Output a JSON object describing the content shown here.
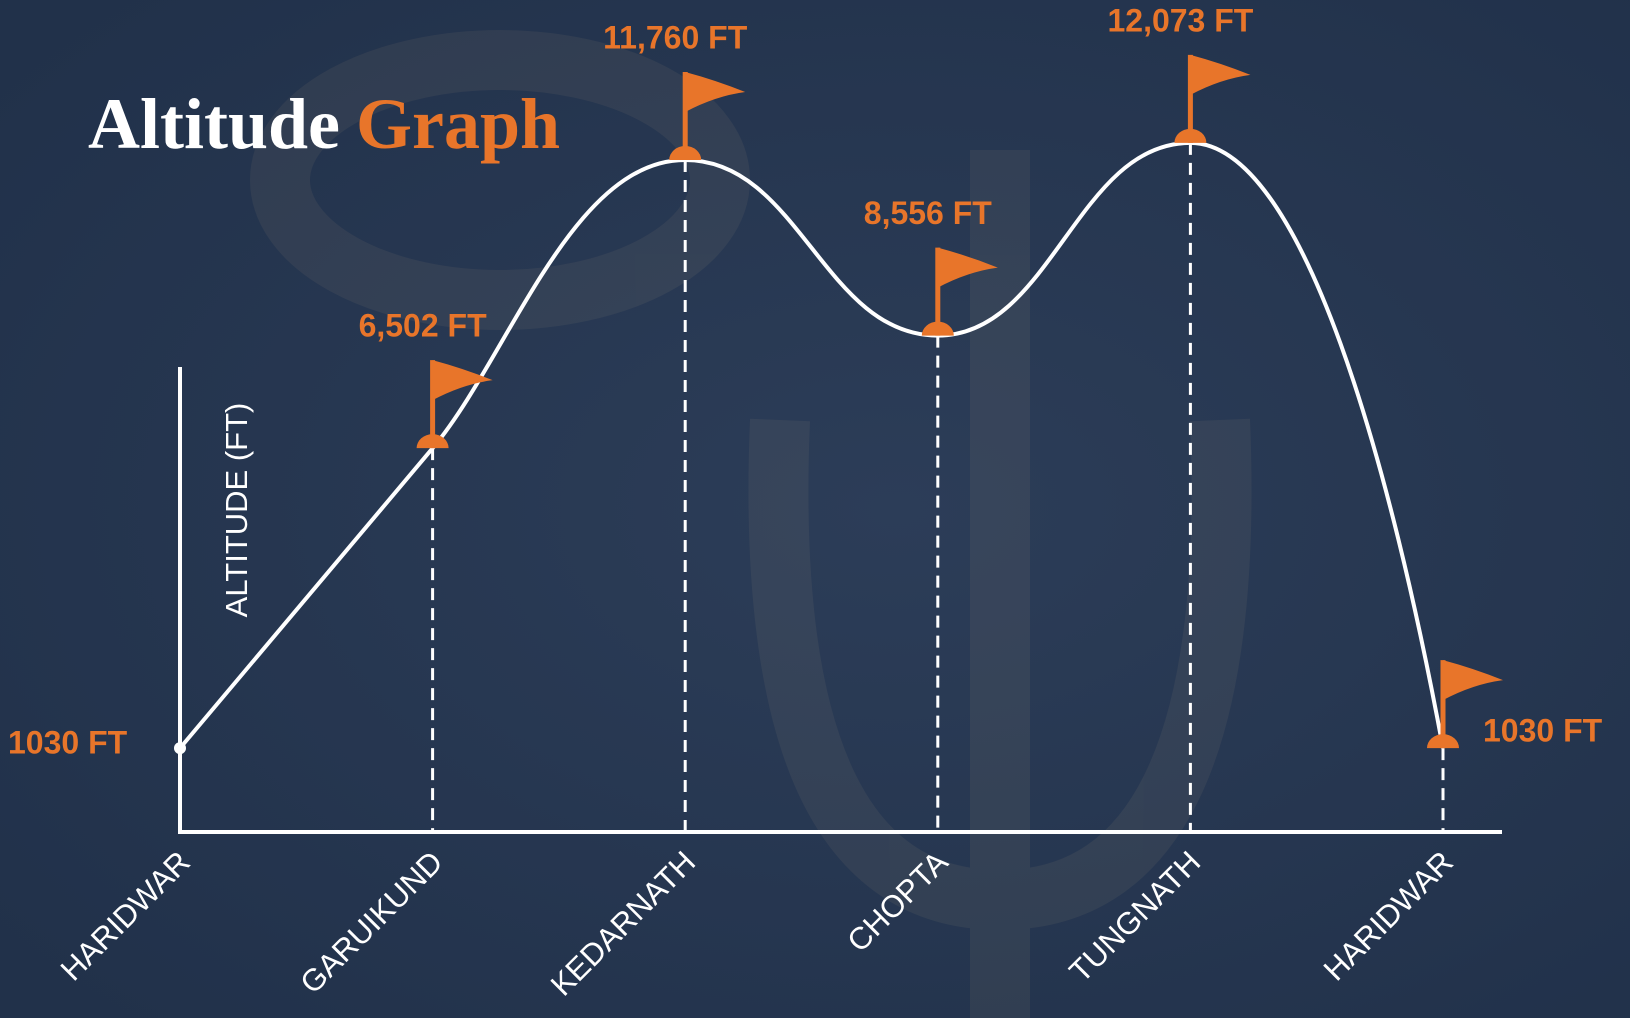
{
  "chart_data": {
    "type": "line",
    "title_parts": [
      "Altitude",
      "Graph"
    ],
    "y_label": "ALTITUDE (FT)",
    "categories": [
      "HARIDWAR",
      "GARUIKUND",
      "KEDARNATH",
      "CHOPTA",
      "TUNGNATH",
      "HARIDWAR"
    ],
    "values": [
      1030,
      6502,
      11760,
      8556,
      12073,
      1030
    ],
    "value_labels": [
      "1030 FT",
      "6,502 FT",
      "11,760 FT",
      "8,556 FT",
      "12,073 FT",
      "1030 FT"
    ],
    "ylim": [
      -500,
      13000
    ],
    "color": "#ffffff",
    "accent_color": "#e8752a"
  }
}
